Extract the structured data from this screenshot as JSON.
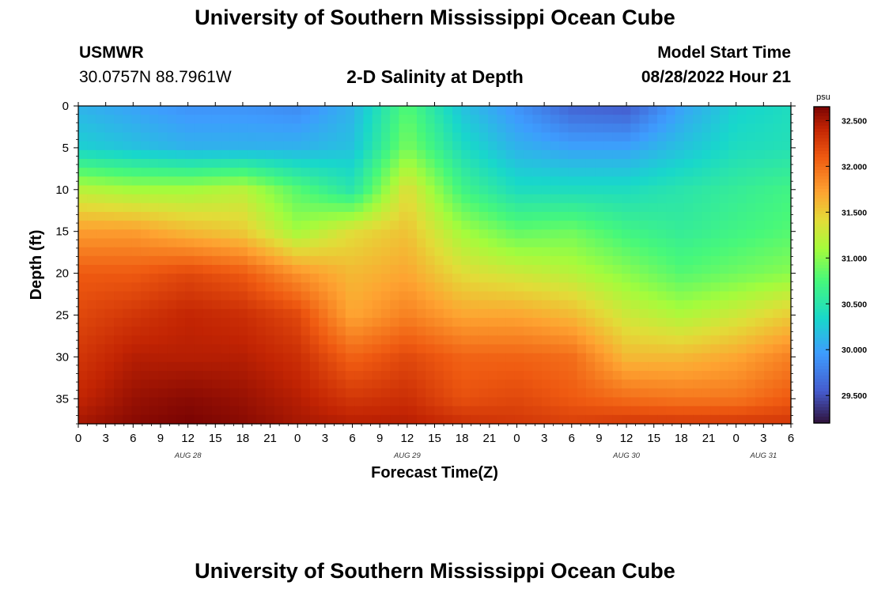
{
  "page": {
    "title": "University of Southern Mississippi Ocean Cube",
    "footer_title": "University of Southern Mississippi Ocean Cube",
    "station": "USMWR",
    "coords": "30.0757N  88.7961W",
    "plot_title": "2-D Salinity at Depth",
    "model_start_label": "Model Start Time",
    "model_start_value": "08/28/2022 Hour 21"
  },
  "chart_data": {
    "type": "heatmap",
    "title": "2-D Salinity at Depth",
    "xlabel": "Forecast Time(Z)",
    "ylabel": "Depth (ft)",
    "x_tick_labels": [
      "0",
      "3",
      "6",
      "9",
      "12",
      "15",
      "18",
      "21",
      "0",
      "3",
      "6",
      "9",
      "12",
      "15",
      "18",
      "21",
      "0",
      "3",
      "6",
      "9",
      "12",
      "15",
      "18",
      "21",
      "0",
      "3",
      "6"
    ],
    "x_range_hours": [
      0,
      78
    ],
    "date_labels": [
      {
        "label": "AUG 28",
        "hour": 12
      },
      {
        "label": "AUG 29",
        "hour": 36
      },
      {
        "label": "AUG 30",
        "hour": 60
      },
      {
        "label": "AUG 31",
        "hour": 75
      }
    ],
    "y_ticks": [
      0,
      5,
      10,
      15,
      20,
      25,
      30,
      35
    ],
    "y_range_ft": [
      0,
      38
    ],
    "colorbar": {
      "unit": "psu",
      "range": [
        29.2,
        32.65
      ],
      "ticks": [
        "29.500",
        "30.000",
        "30.500",
        "31.000",
        "31.500",
        "32.000",
        "32.500"
      ],
      "tick_values": [
        29.5,
        30.0,
        30.5,
        31.0,
        31.5,
        32.0,
        32.5
      ]
    },
    "depth_levels_ft": [
      0,
      5,
      10,
      15,
      20,
      25,
      30,
      35,
      38
    ],
    "time_hours": [
      0,
      6,
      12,
      18,
      24,
      30,
      36,
      42,
      48,
      54,
      60,
      66,
      72,
      78
    ],
    "salinity_psu": [
      [
        30.1,
        30.0,
        29.9,
        29.9,
        29.85,
        30.1,
        30.8,
        30.2,
        29.9,
        29.6,
        29.55,
        30.0,
        30.3,
        30.4
      ],
      [
        30.3,
        30.2,
        30.1,
        30.1,
        30.1,
        30.2,
        30.95,
        30.4,
        30.1,
        30.0,
        30.0,
        30.2,
        30.4,
        30.45
      ],
      [
        31.2,
        31.1,
        31.1,
        31.2,
        30.8,
        30.5,
        31.4,
        30.7,
        30.4,
        30.4,
        30.4,
        30.5,
        30.6,
        30.7
      ],
      [
        31.75,
        31.75,
        31.6,
        31.5,
        31.1,
        31.4,
        31.55,
        31.1,
        30.85,
        30.9,
        30.7,
        30.6,
        30.7,
        30.8
      ],
      [
        32.1,
        32.1,
        32.2,
        32.1,
        31.8,
        31.6,
        31.7,
        31.4,
        31.3,
        31.2,
        31.0,
        30.8,
        30.9,
        31.0
      ],
      [
        32.2,
        32.3,
        32.4,
        32.35,
        32.2,
        31.7,
        31.9,
        31.7,
        31.7,
        31.6,
        31.3,
        31.15,
        31.3,
        31.5
      ],
      [
        32.3,
        32.45,
        32.45,
        32.45,
        32.35,
        32.05,
        32.2,
        32.05,
        32.05,
        32.0,
        31.6,
        31.6,
        31.7,
        31.9
      ],
      [
        32.4,
        32.55,
        32.6,
        32.55,
        32.45,
        32.3,
        32.35,
        32.15,
        32.2,
        32.1,
        32.0,
        31.95,
        31.95,
        32.1
      ],
      [
        32.5,
        32.6,
        32.65,
        32.6,
        32.5,
        32.45,
        32.45,
        32.35,
        32.3,
        32.25,
        32.3,
        32.3,
        32.3,
        32.3
      ]
    ]
  }
}
